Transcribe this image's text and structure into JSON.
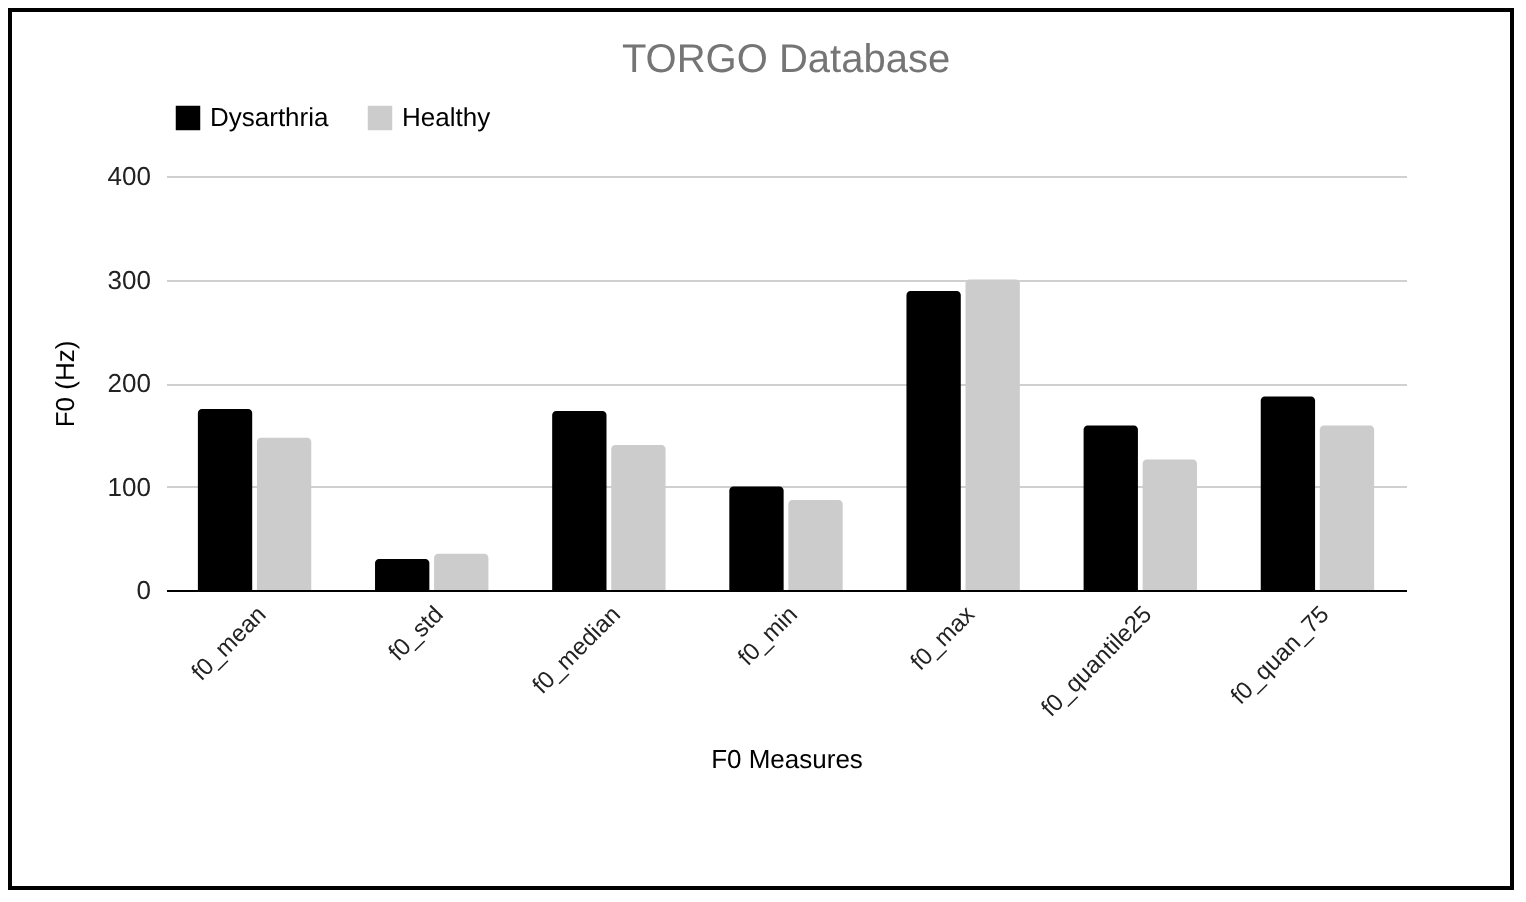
{
  "chart_data": {
    "type": "bar",
    "title": "TORGO Database",
    "xlabel": "F0 Measures",
    "ylabel": "F0 (Hz)",
    "categories": [
      "f0_mean",
      "f0_std",
      "f0_median",
      "f0_min",
      "f0_max",
      "f0_quantile25",
      "f0_quan_75"
    ],
    "series": [
      {
        "name": "Dysarthria",
        "color": "#000000",
        "values": [
          175,
          30,
          173,
          100,
          289,
          159,
          187
        ]
      },
      {
        "name": "Healthy",
        "color": "#cccccc",
        "values": [
          147,
          35,
          140,
          87,
          300,
          126,
          159
        ]
      }
    ],
    "ylim": [
      0,
      400
    ],
    "yticks": [
      0,
      100,
      200,
      300,
      400
    ],
    "grid": "y",
    "legend": "top"
  }
}
